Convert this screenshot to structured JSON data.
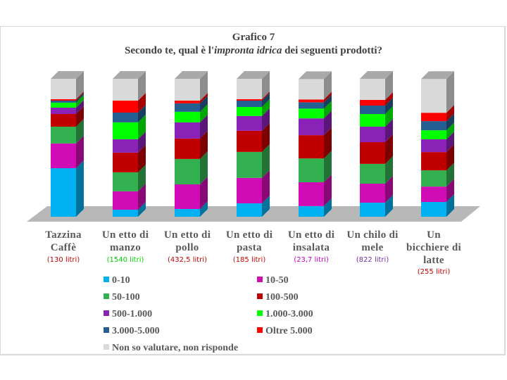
{
  "title": {
    "line1": "Grafico 7",
    "line2_pre": "Secondo te, qual è l'",
    "line2_italic": "impronta idrica",
    "line2_post": " dei seguenti prodotti?"
  },
  "categories": [
    {
      "label_l1": "Tazzina",
      "label_l2": "Caffè",
      "label_l3": "",
      "litri": "(130 litri)",
      "litri_color": "#c00000"
    },
    {
      "label_l1": "Un etto di",
      "label_l2": "manzo",
      "label_l3": "",
      "litri": "(1540 litri)",
      "litri_color": "#00d000"
    },
    {
      "label_l1": "Un etto di",
      "label_l2": "pollo",
      "label_l3": "",
      "litri": "(432,5 litri)",
      "litri_color": "#c00000"
    },
    {
      "label_l1": "Un etto di",
      "label_l2": "pasta",
      "label_l3": "",
      "litri": "(185 litri)",
      "litri_color": "#c00000"
    },
    {
      "label_l1": "Un etto di",
      "label_l2": "insalata",
      "label_l3": "",
      "litri": "(23,7 litri)",
      "litri_color": "#cc00cc"
    },
    {
      "label_l1": "Un chilo di",
      "label_l2": "mele",
      "label_l3": "",
      "litri": "(822 litri)",
      "litri_color": "#7030a0"
    },
    {
      "label_l1": "Un",
      "label_l2": "bicchiere di",
      "label_l3": "latte",
      "litri": "(255 litri)",
      "litri_color": "#c00000"
    }
  ],
  "legend": [
    {
      "label": "0-10",
      "color": "#00b0f0"
    },
    {
      "label": "10-50",
      "color": "#d10cb4"
    },
    {
      "label": "50-100",
      "color": "#33b050"
    },
    {
      "label": "100-500",
      "color": "#c00000"
    },
    {
      "label": "500-1.000",
      "color": "#8a22b8"
    },
    {
      "label": "1.000-3.000",
      "color": "#00ff00"
    },
    {
      "label": "3.000-5.000",
      "color": "#255e91"
    },
    {
      "label": "Oltre 5.000",
      "color": "#ff0000"
    },
    {
      "label": "Non so valutare, non risponde",
      "color": "#d9d9d9"
    }
  ],
  "chart_data": {
    "type": "bar",
    "stacked": true,
    "percent_stacked": true,
    "three_d": true,
    "title": "Grafico 7 — Secondo te, qual è l'impronta idrica dei seguenti prodotti?",
    "xlabel": "",
    "ylabel": "",
    "ylim": [
      0,
      100
    ],
    "grid": false,
    "legend_position": "bottom",
    "categories": [
      "Tazzina Caffè",
      "Un etto di manzo",
      "Un etto di pollo",
      "Un etto di pasta",
      "Un etto di insalata",
      "Un chilo di mele",
      "Un bicchiere di latte"
    ],
    "annotations": [
      "(130 litri)",
      "(1540 litri)",
      "(432,5 litri)",
      "(185 litri)",
      "(23,7 litri)",
      "(822 litri)",
      "(255 litri)"
    ],
    "series": [
      {
        "name": "0-10",
        "values": [
          35.2,
          5.1,
          5.6,
          9.7,
          7.7,
          10.2,
          10.7
        ]
      },
      {
        "name": "10-50",
        "values": [
          17.9,
          13.3,
          17.9,
          18.4,
          17.3,
          13.8,
          11.2
        ]
      },
      {
        "name": "50-100",
        "values": [
          12.2,
          13.8,
          18.4,
          18.9,
          17.3,
          14.3,
          11.7
        ]
      },
      {
        "name": "100-500",
        "values": [
          9.2,
          14.3,
          14.8,
          15.3,
          16.8,
          15.8,
          13.3
        ]
      },
      {
        "name": "500-1.000",
        "values": [
          4.6,
          9.7,
          11.7,
          10.7,
          12.2,
          11.2,
          9.2
        ]
      },
      {
        "name": "1.000-3.000",
        "values": [
          3.6,
          12.2,
          7.7,
          6.6,
          7.1,
          9.2,
          6.6
        ]
      },
      {
        "name": "3.000-5.000",
        "values": [
          1.5,
          7.1,
          6.1,
          4.6,
          4.6,
          6.1,
          6.6
        ]
      },
      {
        "name": "Oltre 5.000",
        "values": [
          1.0,
          8.7,
          2.0,
          1.0,
          2.0,
          4.1,
          6.1
        ]
      },
      {
        "name": "Non so valutare, non risponde",
        "values": [
          14.8,
          15.8,
          15.8,
          14.8,
          14.8,
          15.3,
          24.5
        ]
      }
    ]
  }
}
